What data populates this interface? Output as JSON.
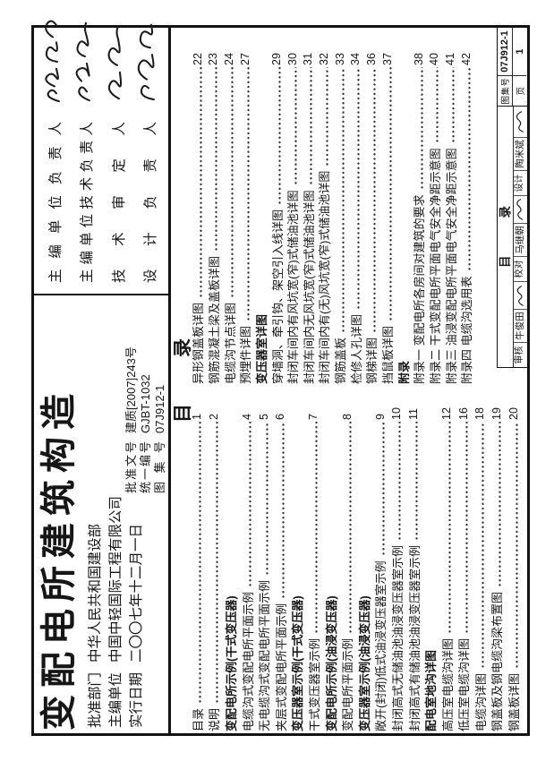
{
  "colors": {
    "ink": "#161616",
    "paper": "#ffffff"
  },
  "title_block": {
    "title": "变配电所建筑构造",
    "info_rows": [
      {
        "label": "批准部门",
        "value": "中华人民共和国建设部"
      },
      {
        "label": "主编单位",
        "value": "中国中轻国际工程有限公司"
      },
      {
        "label": "实行日期",
        "value": "二〇〇七年十二月一日"
      }
    ],
    "doc_rows": [
      {
        "label": "批准文号",
        "value": "建质[2007]243号"
      },
      {
        "label": "统一编号",
        "value": "GJBT-1032"
      },
      {
        "label": "图集号",
        "value": "07J912-1"
      }
    ]
  },
  "sign_block": {
    "rows": [
      {
        "label": "主编单位负责人",
        "signed": true
      },
      {
        "label": "主编单位技术负责人",
        "signed": true
      },
      {
        "label": "技术审定人",
        "signed": true
      },
      {
        "label": "设计负责人",
        "signed": true
      }
    ]
  },
  "toc": {
    "heading": "目录",
    "col1": [
      {
        "t": "目录",
        "p": "1"
      },
      {
        "t": "说明",
        "p": "2"
      },
      {
        "t": "变配电所示例(干式变压器)",
        "b": true
      },
      {
        "t": "电缆沟式变配电所平面示例",
        "p": "4"
      },
      {
        "t": "无电缆沟式变配电所平面示例",
        "p": "5"
      },
      {
        "t": "夹层式变配电所平面示例",
        "p": "6"
      },
      {
        "t": "变压器室示例(干式变压器)",
        "b": true
      },
      {
        "t": "干式变压器室示例",
        "p": "7"
      },
      {
        "t": "变配电所示例(油浸变压器)",
        "b": true
      },
      {
        "t": "变配电所平面示例",
        "p": "8"
      },
      {
        "t": "变压器室示例(油浸变压器)",
        "b": true
      },
      {
        "t": "敞开(封闭)低式油浸变压器室示例",
        "p": "9"
      },
      {
        "t": "封闭高式无储油池油浸变压器室示例",
        "p": "10"
      },
      {
        "t": "封闭高式有储油池油浸变压器室示例",
        "p": "11"
      },
      {
        "t": "配电室地沟详图",
        "b": true
      },
      {
        "t": "高压室电缆沟详图",
        "p": "12"
      },
      {
        "t": "低压室电缆沟详图",
        "p": "16"
      },
      {
        "t": "电缆沟详图",
        "p": "18"
      },
      {
        "t": "钢盖板及钢电缆沟梁布置图",
        "p": "19"
      },
      {
        "t": "钢盖板详图",
        "p": "20"
      }
    ],
    "col2": [
      {
        "t": "异形钢盖板详图",
        "p": "22"
      },
      {
        "t": "钢筋混凝土梁及盖板详图",
        "p": "23"
      },
      {
        "t": "电缆沟节点详图",
        "p": "24"
      },
      {
        "t": "预埋件详图",
        "p": "27"
      },
      {
        "t": "变压器室详图",
        "b": true
      },
      {
        "t": "穿墙洞、牵引钩、架空引入线详图",
        "p": "29"
      },
      {
        "t": "封闭车间内有风坑宽(窄)式储油池详图",
        "p": "30"
      },
      {
        "t": "封闭车间内无风坑宽(窄)式储油池详图",
        "p": "31"
      },
      {
        "t": "封闭车间内有(无)风坑宽(窄)式储油池详图",
        "p": "32"
      },
      {
        "t": "钢筋盖板",
        "p": "33"
      },
      {
        "t": "检修人孔详图",
        "p": "34"
      },
      {
        "t": "钢梯详图",
        "p": "36"
      },
      {
        "t": "挡鼠板详图",
        "p": "37"
      },
      {
        "t": "附录",
        "b": true
      },
      {
        "t": "附录一 变配电所各房间对建筑的要求",
        "p": "38"
      },
      {
        "t": "附录二 干式变配电所平面电气安全净距示意图",
        "p": "40"
      },
      {
        "t": "附录三 油浸变配电所平面电气安全净距示意图",
        "p": "41"
      },
      {
        "t": "附录四 电缆沟选用表",
        "p": "42"
      }
    ]
  },
  "footer": {
    "sheet_title": "目录",
    "cells": [
      {
        "label": "审核",
        "name": "牛俊田",
        "signed": true
      },
      {
        "label": "校对",
        "name": "马继朝",
        "signed": true
      },
      {
        "label": "设计",
        "name": "陶米斌",
        "signed": true
      }
    ],
    "atlas_label": "图集号",
    "atlas_no": "07J912-1",
    "page_label": "页",
    "page_no": "1"
  }
}
